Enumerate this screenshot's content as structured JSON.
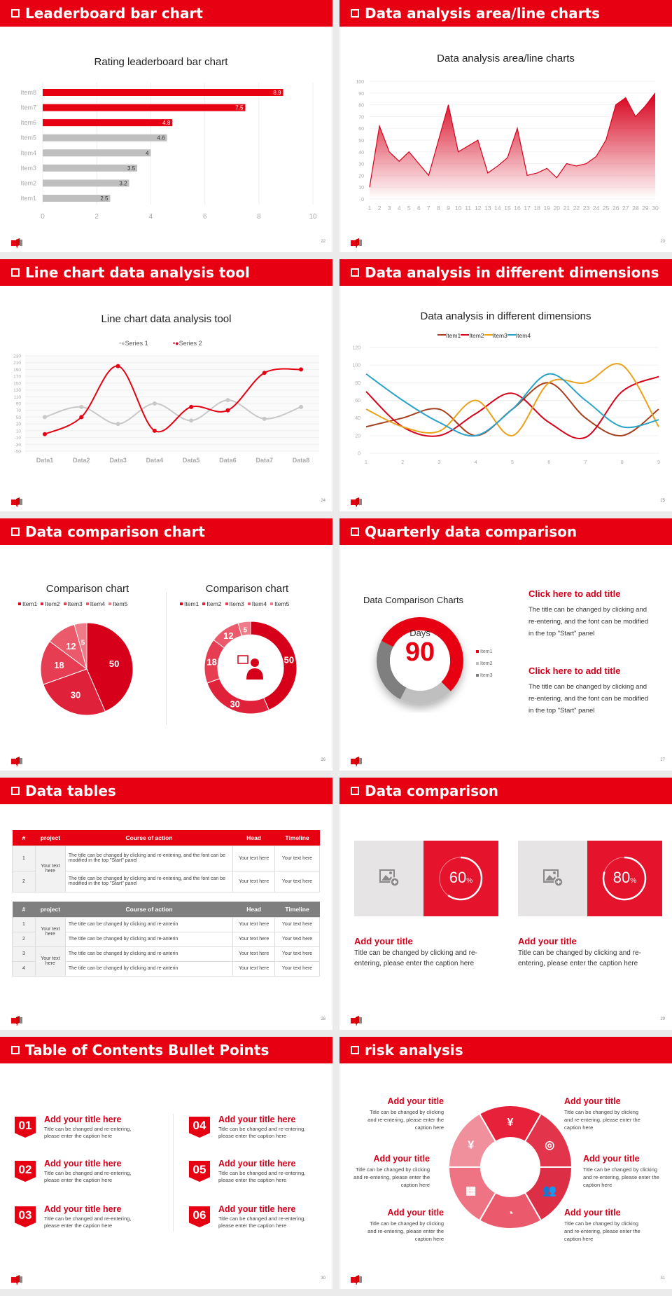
{
  "colors": {
    "accent": "#e60012",
    "gray": "#bfbfbf",
    "dark_gray": "#7f7f7f",
    "item1": "#a5401e",
    "item2": "#d7001b",
    "item3": "#e8a21c",
    "item4": "#2aa3c9"
  },
  "slides": [
    {
      "title": "Leaderboard bar chart",
      "page": "22",
      "chart_title": "Rating leaderboard bar chart"
    },
    {
      "title": "Data analysis area/line charts",
      "page": "23",
      "chart_title": "Data analysis area/line charts"
    },
    {
      "title": "Line chart data analysis tool",
      "page": "24",
      "chart_title": "Line chart data analysis tool"
    },
    {
      "title": "Data analysis in different dimensions",
      "page": "25",
      "chart_title": "Data analysis in different dimensions"
    },
    {
      "title": "Data comparison chart",
      "page": "26",
      "chart_title_left": "Comparison chart",
      "chart_title_right": "Comparison chart"
    },
    {
      "title": "Quarterly data comparison",
      "page": "27",
      "chart_title": "Data Comparison Charts",
      "center_label": "Days",
      "center_value": "90",
      "blocks": [
        {
          "title": "Click here to add title",
          "text": "The title can be changed by clicking and re-entering, and the font can be modified in the top \"Start\" panel"
        },
        {
          "title": "Click here to add title",
          "text": "The title can be changed by clicking and re-entering, and the font can be modified in the top \"Start\" panel"
        }
      ]
    },
    {
      "title": "Data tables",
      "page": "28",
      "table1": {
        "headers": [
          "#",
          "project",
          "Course of action",
          "Head",
          "Timeline"
        ],
        "group": "Your text here",
        "rows": [
          [
            "1",
            "The title can be changed by clicking and re-entering, and the font can be modified in the top \"Start\" panel",
            "Your text here",
            "Your text here"
          ],
          [
            "2",
            "The title can be changed by clicking and re-entering, and the font can be modified in the top \"Start\" panel",
            "Your text here",
            "Your text here"
          ]
        ]
      },
      "table2": {
        "headers": [
          "#",
          "project",
          "Course of action",
          "Head",
          "Timeline"
        ],
        "groups": [
          "Your text here",
          "Your text here"
        ],
        "rows": [
          [
            "1",
            "The title can be changed by clicking and re-anterin",
            "Your text here",
            "Your text here"
          ],
          [
            "2",
            "The title can be changed by clicking and re-anterin",
            "Your text here",
            "Your text here"
          ],
          [
            "3",
            "The title can be changed by clicking and re-anterin",
            "Your text here",
            "Your text here"
          ],
          [
            "4",
            "The title can be changed by clicking and re-anterin",
            "Your text here",
            "Your text here"
          ]
        ]
      }
    },
    {
      "title": "Data comparison",
      "page": "29",
      "cards": [
        {
          "percent": 60,
          "label": "60",
          "unit": "%",
          "title": "Add your title",
          "text": "Title can be changed by clicking and re-entering, please enter the caption here",
          "icon": "image-add-icon"
        },
        {
          "percent": 80,
          "label": "80",
          "unit": "%",
          "title": "Add your title",
          "text": "Title can be changed by clicking and re-entering, please enter the caption here",
          "icon": "image-add-icon"
        }
      ]
    },
    {
      "title": "Table of Contents Bullet Points",
      "page": "30",
      "items": [
        {
          "num": "01",
          "title": "Add your title here",
          "text": "Title can be changed and re-entering, please enter the caption here"
        },
        {
          "num": "02",
          "title": "Add your title here",
          "text": "Title can be changed and re-entering, please enter the caption here"
        },
        {
          "num": "03",
          "title": "Add your title here",
          "text": "Title can be changed and re-entering, please enter the caption here"
        },
        {
          "num": "04",
          "title": "Add your title here",
          "text": "Title can be changed and re-entering, please enter the caption here"
        },
        {
          "num": "05",
          "title": "Add your title here",
          "text": "Title can be changed and re-entering, please enter the caption here"
        },
        {
          "num": "06",
          "title": "Add your title here",
          "text": "Title can be changed and re-entering, please enter the caption here"
        }
      ]
    },
    {
      "title": "risk analysis",
      "page": "31",
      "items": [
        {
          "title": "Add your title",
          "text": "Title can be changed by clicking and re-entering, please enter the caption here"
        },
        {
          "title": "Add your title",
          "text": "Title can be changed by clicking and re-entering, please enter the caption here"
        },
        {
          "title": "Add your title",
          "text": "Title can be changed by clicking and re-entering, please enter the caption here"
        },
        {
          "title": "Add your title",
          "text": "Title can be changed by clicking and re-entering, please enter the caption here"
        },
        {
          "title": "Add your title",
          "text": "Title can be changed by clicking and re-entering, please enter the caption here"
        },
        {
          "title": "Add your title",
          "text": "Title can be changed by clicking and re-entering, please enter the caption here"
        }
      ],
      "icons": [
        "money-bag-yen-icon",
        "coins-icon",
        "users-icon",
        "pie-chart-icon",
        "building-icon",
        "yen-hand-icon"
      ]
    }
  ],
  "chart_data": [
    {
      "type": "bar",
      "orientation": "horizontal",
      "title": "Rating leaderboard bar chart",
      "categories": [
        "Item1",
        "Item2",
        "Item3",
        "Item4",
        "Item5",
        "Item6",
        "Item7",
        "Item8"
      ],
      "values": [
        2.5,
        3.2,
        3.5,
        4,
        4.6,
        4.8,
        7.5,
        8.9
      ],
      "highlight": [
        "Item6",
        "Item7",
        "Item8"
      ],
      "xlim": [
        0,
        10
      ],
      "xticks": [
        0,
        2,
        4,
        6,
        8,
        10
      ],
      "grid": true
    },
    {
      "type": "area",
      "title": "Data analysis area/line charts",
      "x": [
        1,
        2,
        3,
        4,
        5,
        6,
        7,
        8,
        9,
        10,
        11,
        12,
        13,
        14,
        15,
        16,
        17,
        18,
        19,
        20,
        21,
        22,
        23,
        24,
        25,
        26,
        27,
        28,
        29,
        30
      ],
      "values": [
        10,
        62,
        40,
        32,
        40,
        30,
        20,
        50,
        80,
        40,
        45,
        50,
        22,
        28,
        35,
        60,
        20,
        22,
        26,
        18,
        30,
        28,
        30,
        36,
        50,
        80,
        86,
        70,
        79,
        90
      ],
      "ylim": [
        0,
        100
      ],
      "yticks": [
        0,
        10,
        20,
        30,
        40,
        50,
        60,
        70,
        80,
        90,
        100
      ],
      "grid": true
    },
    {
      "type": "line",
      "smooth": true,
      "title": "Line chart data analysis tool",
      "categories": [
        "Data1",
        "Data2",
        "Data3",
        "Data4",
        "Data5",
        "Data6",
        "Data7",
        "Data8"
      ],
      "series": [
        {
          "name": "Series 1",
          "values": [
            50,
            80,
            30,
            90,
            40,
            100,
            45,
            80
          ]
        },
        {
          "name": "Series 2",
          "values": [
            0,
            50,
            200,
            10,
            80,
            70,
            180,
            190
          ]
        }
      ],
      "ylim": [
        -50,
        230
      ],
      "yticks": [
        -50,
        -30,
        -10,
        10,
        30,
        50,
        70,
        90,
        110,
        130,
        150,
        170,
        190,
        210,
        230
      ],
      "legend": "top",
      "grid": true
    },
    {
      "type": "line",
      "smooth": true,
      "title": "Data analysis in different dimensions",
      "x": [
        1,
        2,
        3,
        4,
        5,
        6,
        7,
        8,
        9
      ],
      "series": [
        {
          "name": "Item1",
          "values": [
            30,
            40,
            50,
            20,
            50,
            80,
            40,
            20,
            50
          ]
        },
        {
          "name": "Item2",
          "values": [
            70,
            30,
            20,
            45,
            68,
            35,
            18,
            70,
            87
          ]
        },
        {
          "name": "Item3",
          "values": [
            50,
            30,
            25,
            60,
            20,
            80,
            80,
            100,
            30
          ]
        },
        {
          "name": "Item4",
          "values": [
            90,
            60,
            35,
            20,
            50,
            90,
            60,
            30,
            38
          ]
        }
      ],
      "ylim": [
        0,
        120
      ],
      "yticks": [
        0,
        20,
        40,
        60,
        80,
        100,
        120
      ],
      "legend": "top",
      "grid": true
    },
    {
      "type": "pie",
      "title": "Comparison chart",
      "categories": [
        "Item1",
        "Item2",
        "Item3",
        "Item4",
        "Item5"
      ],
      "values": [
        50,
        30,
        18,
        12,
        5
      ],
      "legend": "top"
    },
    {
      "type": "pie",
      "donut": true,
      "title": "Comparison chart",
      "categories": [
        "Item1",
        "Item2",
        "Item3",
        "Item4",
        "Item5"
      ],
      "values": [
        50,
        30,
        18,
        12,
        5
      ],
      "legend": "top",
      "center_icon": "person-presenter-icon"
    },
    {
      "type": "pie",
      "donut": true,
      "title": "Data Comparison Charts",
      "categories": [
        "Item1",
        "Item2",
        "Item3"
      ],
      "values": [
        55,
        20,
        25
      ],
      "legend": "right"
    }
  ]
}
